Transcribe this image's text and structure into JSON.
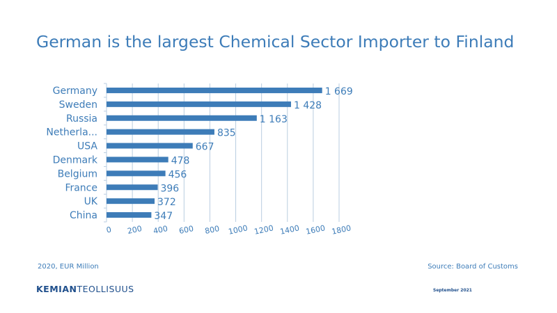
{
  "title": "German is the largest Chemical Sector Importer to Finland",
  "footnote_left": "2020, EUR Million",
  "footnote_right": "Source: Board of Customs",
  "logo": {
    "bold": "KEMIAN",
    "normal": "TEOLLISUUS"
  },
  "date": "September 2021",
  "colors": {
    "bar": "#3d7cb8",
    "text": "#3d7cb8",
    "grid": "#b9cde0",
    "logo": "#1f4f8c"
  },
  "chart_data": {
    "type": "bar",
    "orientation": "horizontal",
    "categories": [
      "Germany",
      "Sweden",
      "Russia",
      "Netherla...",
      "USA",
      "Denmark",
      "Belgium",
      "France",
      "UK",
      "China"
    ],
    "values": [
      1669,
      1428,
      1163,
      835,
      667,
      478,
      456,
      396,
      372,
      347
    ],
    "value_labels": [
      "1 669",
      "1 428",
      "1 163",
      "835",
      "667",
      "478",
      "456",
      "396",
      "372",
      "347"
    ],
    "xticks": [
      "0",
      "200",
      "400",
      "600",
      "800",
      "1000",
      "1200",
      "1400",
      "1600",
      "1800"
    ],
    "xlim": [
      0,
      1800
    ],
    "grid": true
  }
}
